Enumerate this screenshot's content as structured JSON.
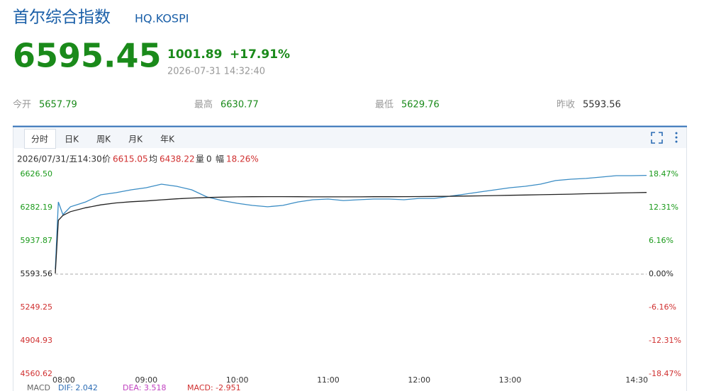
{
  "header": {
    "name": "首尔综合指数",
    "code": "HQ.KOSPI",
    "price": "6595.45",
    "change": "1001.89",
    "change_pct": "+17.91%",
    "time": "2026-07-31 14:32:40"
  },
  "stats": [
    {
      "label": "今开",
      "value": "5657.79"
    },
    {
      "label": "最高",
      "value": "6630.77"
    },
    {
      "label": "最低",
      "value": "5629.76"
    },
    {
      "label": "昨收",
      "value": "5593.56"
    }
  ],
  "tabs": [
    "分时",
    "日K",
    "周K",
    "月K",
    "年K"
  ],
  "info": {
    "date": "2026/07/31/五14:30",
    "price_label": "价",
    "price": "6615.05",
    "avg_label": "均",
    "avg": "6438.22",
    "vol_label": "量",
    "vol": "0",
    "amp_label": "幅",
    "amp": "18.26%"
  },
  "chart_data": {
    "type": "line",
    "x": [
      "08:00",
      "08:02",
      "08:05",
      "08:10",
      "08:20",
      "08:30",
      "08:40",
      "08:50",
      "09:00",
      "09:10",
      "09:20",
      "09:30",
      "09:40",
      "09:50",
      "10:00",
      "10:10",
      "10:20",
      "10:30",
      "10:40",
      "10:50",
      "11:00",
      "11:10",
      "11:20",
      "11:30",
      "11:40",
      "11:50",
      "12:00",
      "12:10",
      "12:20",
      "12:30",
      "12:40",
      "12:50",
      "13:00",
      "13:10",
      "13:20",
      "13:30",
      "13:40",
      "13:50",
      "14:00",
      "14:10",
      "14:20",
      "14:30"
    ],
    "xlim": [
      "08:00",
      "14:30"
    ],
    "xticks": [
      "08:00",
      "09:00",
      "10:00",
      "11:00",
      "12:00",
      "13:00",
      "14:30"
    ],
    "series": [
      {
        "color": "#3a8cc4",
        "values": [
          5645,
          6340,
          6209,
          6290,
          6340,
          6414,
          6436,
          6465,
          6487,
          6524,
          6502,
          6465,
          6392,
          6355,
          6326,
          6304,
          6290,
          6304,
          6340,
          6363,
          6370,
          6355,
          6363,
          6370,
          6370,
          6363,
          6377,
          6377,
          6399,
          6421,
          6443,
          6465,
          6487,
          6502,
          6524,
          6561,
          6575,
          6583,
          6597,
          6612,
          6612,
          6615.05
        ]
      },
      {
        "color": "#222222",
        "values": [
          5600,
          6150,
          6200,
          6240,
          6280,
          6310,
          6330,
          6342,
          6350,
          6362,
          6372,
          6380,
          6386,
          6390,
          6393,
          6394,
          6395,
          6395,
          6394,
          6393,
          6393,
          6393,
          6393,
          6394,
          6394,
          6395,
          6396,
          6397,
          6399,
          6401,
          6403,
          6406,
          6409,
          6412,
          6415,
          6418,
          6421,
          6425,
          6428,
          6432,
          6435,
          6438.22
        ]
      }
    ],
    "ylim": [
      4560.62,
      6626.5
    ],
    "yticks": [
      {
        "value": 6626.5,
        "label": "6626.50"
      },
      6282.19,
      5937.87,
      5593.56,
      5249.25,
      4904.93,
      4560.62
    ],
    "y2lim": [
      -18.47,
      18.47
    ],
    "y2ticks": [
      {
        "value": 18.47,
        "label": "18.47%"
      },
      {
        "value": 12.31,
        "label": "12.31%"
      },
      {
        "value": 6.16,
        "label": "6.16%"
      },
      {
        "value": 0,
        "label": "0.00%"
      },
      {
        "value": -6.16,
        "label": "-6.16%"
      },
      {
        "value": -12.31,
        "label": "-12.31%"
      },
      {
        "value": -18.47,
        "label": "-18.47%"
      }
    ],
    "baseline": 5593.56
  },
  "macd": {
    "name": "MACD",
    "dif": "DIF: 2.042",
    "dea": "DEA: 3.518",
    "macd": "MACD: -2.951"
  }
}
